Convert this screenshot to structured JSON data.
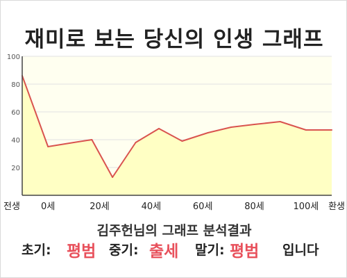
{
  "title": "재미로 보는 당신의 인생 그래프",
  "subtitle": "김주헌님의 그래프 분석결과",
  "result": {
    "early_label": "초기:",
    "early_value": "평범",
    "mid_label": "중기:",
    "mid_value": "출세",
    "late_label": "말기:",
    "late_value": "평범",
    "suffix": "입니다"
  },
  "colors": {
    "accent": "#e8505b",
    "line": "#d9534f",
    "area_fill": "#ffffc4",
    "plot_bg": "#fffff0"
  },
  "chart_data": {
    "type": "area",
    "xlabel": "",
    "ylabel": "",
    "ylim": [
      0,
      100
    ],
    "yticks": [
      20,
      40,
      60,
      80,
      100
    ],
    "xlim": [
      -10,
      110
    ],
    "xticks": [
      {
        "x": -10,
        "label": "전생"
      },
      {
        "x": 0,
        "label": "0세"
      },
      {
        "x": 20,
        "label": "20세"
      },
      {
        "x": 40,
        "label": "40세"
      },
      {
        "x": 60,
        "label": "60세"
      },
      {
        "x": 80,
        "label": "80세"
      },
      {
        "x": 100,
        "label": "100세"
      },
      {
        "x": 110,
        "label": "환생"
      }
    ],
    "grid": true,
    "series": [
      {
        "x": [
          -10,
          0,
          10,
          17,
          25,
          34,
          43,
          52,
          62,
          71,
          80,
          90,
          100,
          110
        ],
        "y": [
          86,
          35,
          38,
          40,
          13,
          38,
          48,
          39,
          45,
          49,
          51,
          53,
          47,
          47
        ]
      }
    ]
  }
}
